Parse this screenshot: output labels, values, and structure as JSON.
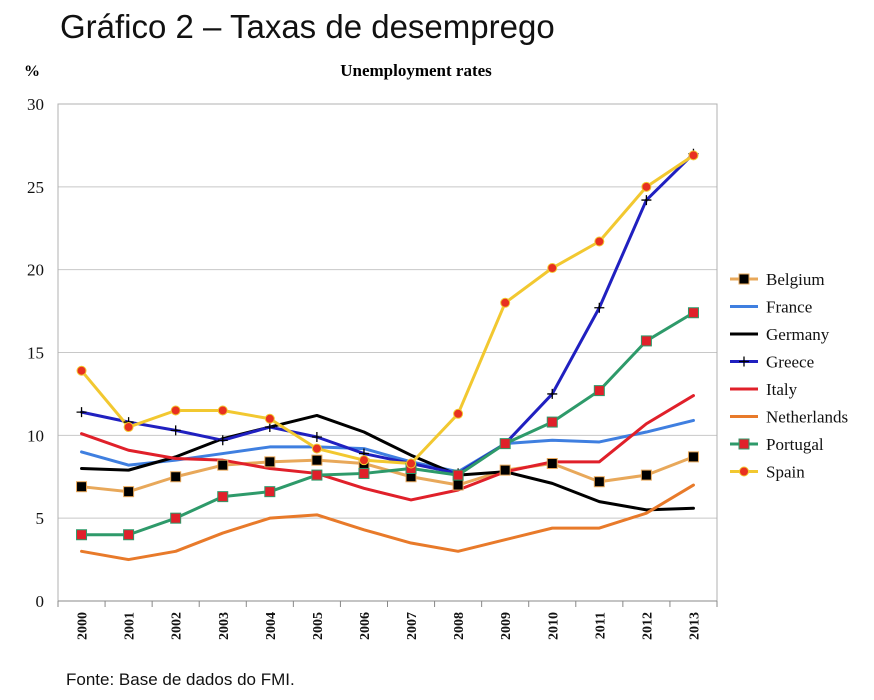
{
  "header": {
    "title": "Gráfico 2 – Taxas de desemprego"
  },
  "footer": {
    "source": "Fonte: Base de dados do FMI."
  },
  "chart_data": {
    "type": "line",
    "title": "Unemployment rates",
    "ylabel": "%",
    "xlabel": "",
    "ylim": [
      0,
      30
    ],
    "yticks": [
      0,
      5,
      10,
      15,
      20,
      25,
      30
    ],
    "grid": true,
    "legend_position": "right",
    "categories": [
      "2000",
      "2001",
      "2002",
      "2003",
      "2004",
      "2005",
      "2006",
      "2007",
      "2008",
      "2009",
      "2010",
      "2011",
      "2012",
      "2013"
    ],
    "series": [
      {
        "name": "Belgium",
        "color": "#E8A85A",
        "marker": "square-black",
        "values": [
          6.9,
          6.6,
          7.5,
          8.2,
          8.4,
          8.5,
          8.3,
          7.5,
          7.0,
          7.9,
          8.3,
          7.2,
          7.6,
          8.7
        ]
      },
      {
        "name": "France",
        "color": "#3F7FE0",
        "marker": "none",
        "values": [
          9.0,
          8.2,
          8.5,
          8.9,
          9.3,
          9.3,
          9.2,
          8.4,
          7.8,
          9.5,
          9.7,
          9.6,
          10.2,
          10.9
        ]
      },
      {
        "name": "Germany",
        "color": "#000000",
        "marker": "none",
        "values": [
          8.0,
          7.9,
          8.7,
          9.8,
          10.5,
          11.2,
          10.2,
          8.8,
          7.6,
          7.8,
          7.1,
          6.0,
          5.5,
          5.6
        ]
      },
      {
        "name": "Greece",
        "color": "#2020C0",
        "marker": "plus",
        "values": [
          11.4,
          10.8,
          10.3,
          9.7,
          10.5,
          9.9,
          8.9,
          8.3,
          7.7,
          9.5,
          12.5,
          17.7,
          24.2,
          27.0
        ]
      },
      {
        "name": "Italy",
        "color": "#E0202A",
        "marker": "none",
        "values": [
          10.1,
          9.1,
          8.6,
          8.5,
          8.0,
          7.7,
          6.8,
          6.1,
          6.7,
          7.8,
          8.4,
          8.4,
          10.7,
          12.4
        ]
      },
      {
        "name": "Netherlands",
        "color": "#E87A2A",
        "marker": "none",
        "values": [
          3.0,
          2.5,
          3.0,
          4.1,
          5.0,
          5.2,
          4.3,
          3.5,
          3.0,
          3.7,
          4.4,
          4.4,
          5.3,
          7.0
        ]
      },
      {
        "name": "Portugal",
        "color": "#2E9A6A",
        "marker": "square-red",
        "values": [
          4.0,
          4.0,
          5.0,
          6.3,
          6.6,
          7.6,
          7.7,
          8.0,
          7.6,
          9.5,
          10.8,
          12.7,
          15.7,
          17.4
        ]
      },
      {
        "name": "Spain",
        "color": "#F2C830",
        "marker": "circle-red",
        "values": [
          13.9,
          10.5,
          11.5,
          11.5,
          11.0,
          9.2,
          8.5,
          8.3,
          11.3,
          18.0,
          20.1,
          21.7,
          25.0,
          26.9
        ]
      }
    ]
  }
}
